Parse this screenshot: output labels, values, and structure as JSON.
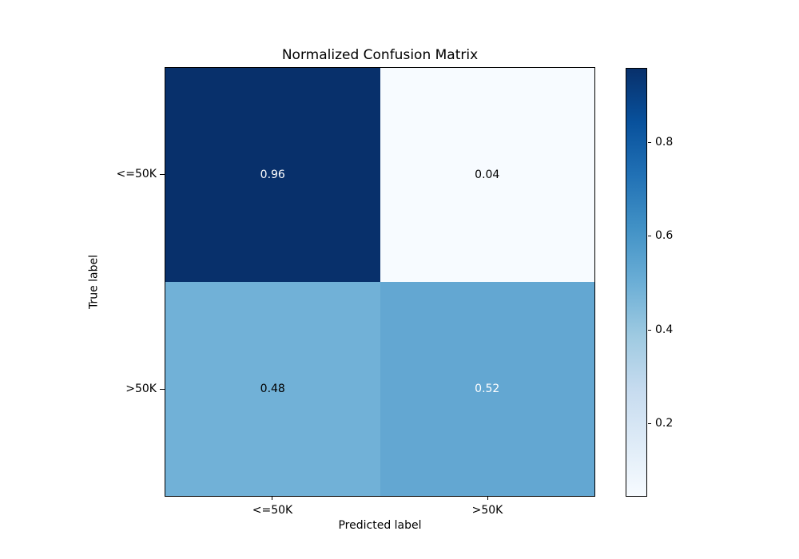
{
  "chart_data": {
    "type": "heatmap",
    "title": "Normalized Confusion Matrix",
    "xlabel": "Predicted label",
    "ylabel": "True label",
    "x_tick_labels": [
      "<=50K",
      ">50K"
    ],
    "y_tick_labels": [
      "<=50K",
      ">50K"
    ],
    "matrix": [
      [
        0.96,
        0.04
      ],
      [
        0.48,
        0.52
      ]
    ],
    "colormap": "Blues",
    "vmin": 0.04,
    "vmax": 0.96,
    "grid": false,
    "legend_position": "colorbar-right",
    "cells": [
      {
        "row": "<=50K",
        "col": "<=50K",
        "value": 0.96,
        "label": "0.96",
        "bg": "#08306b",
        "fg": "#ffffff"
      },
      {
        "row": "<=50K",
        "col": ">50K",
        "value": 0.04,
        "label": "0.04",
        "bg": "#f7fbff",
        "fg": "#000000"
      },
      {
        "row": ">50K",
        "col": "<=50K",
        "value": 0.48,
        "label": "0.48",
        "bg": "#71b1d7",
        "fg": "#000000"
      },
      {
        "row": ">50K",
        "col": ">50K",
        "value": 0.52,
        "label": "0.52",
        "bg": "#63a7d2",
        "fg": "#ffffff"
      }
    ],
    "colorbar": {
      "ticks": [
        "0.8",
        "0.6",
        "0.4",
        "0.2"
      ],
      "top_color": "#08306b",
      "bottom_color": "#f7fbff"
    }
  }
}
